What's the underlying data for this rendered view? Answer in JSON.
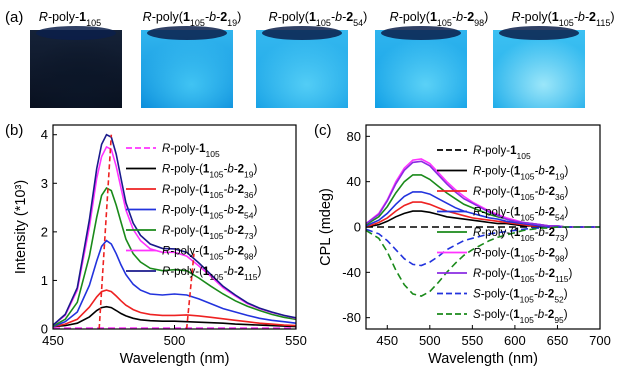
{
  "panel_labels": [
    "(a)",
    "(b)",
    "(c)"
  ],
  "vials": [
    {
      "caption": "R-poly-1105",
      "top": "#152238",
      "bottom": "#09101f",
      "glow": "#0b1628"
    },
    {
      "caption": "R-poly(1105-b-219)",
      "top": "#31b5ee",
      "bottom": "#0d8fdc",
      "glow": "#45c8f5"
    },
    {
      "caption": "R-poly(1105-b-254)",
      "top": "#34b8ef",
      "bottom": "#1aa3e6",
      "glow": "#58d1f7"
    },
    {
      "caption": "R-poly(1105-b-298)",
      "top": "#2fb4ee",
      "bottom": "#12a0e6",
      "glow": "#62d6f8"
    },
    {
      "caption": "R-poly(1105-b-2115)",
      "top": "#3cc0f2",
      "bottom": "#22aeea",
      "glow": "#a8ecfb"
    }
  ],
  "chart_data": [
    {
      "type": "line",
      "panel": "(b)",
      "xlabel": "Wavelength (nm)",
      "ylabel": "Intensity (*10³)",
      "xlim": [
        450,
        550
      ],
      "ylim": [
        0,
        4.2
      ],
      "xticks": [
        "450",
        "500",
        "550"
      ],
      "yticks": [
        "0",
        "1",
        "2",
        "3",
        "4"
      ],
      "legend_position": "top-right",
      "x": [
        450,
        455,
        460,
        465,
        468,
        470,
        472,
        474,
        476,
        478,
        480,
        483,
        486,
        490,
        495,
        500,
        505,
        510,
        515,
        520,
        525,
        530,
        535,
        540,
        545,
        550
      ],
      "series": [
        {
          "name": "R-poly-1105",
          "color": "#ff33ff",
          "dash": "dashed",
          "values": [
            0.02,
            0.02,
            0.02,
            0.02,
            0.02,
            0.02,
            0.02,
            0.02,
            0.02,
            0.02,
            0.02,
            0.02,
            0.02,
            0.02,
            0.02,
            0.02,
            0.02,
            0.02,
            0.02,
            0.02,
            0.02,
            0.02,
            0.02,
            0.02,
            0.02,
            0.02
          ]
        },
        {
          "name": "R-poly-(1105-b-219)",
          "color": "#000000",
          "dash": "solid",
          "values": [
            0.05,
            0.07,
            0.12,
            0.25,
            0.38,
            0.44,
            0.46,
            0.44,
            0.38,
            0.32,
            0.27,
            0.22,
            0.19,
            0.17,
            0.16,
            0.16,
            0.15,
            0.14,
            0.13,
            0.12,
            0.1,
            0.09,
            0.08,
            0.07,
            0.06,
            0.05
          ]
        },
        {
          "name": "R-poly-(1105-b-236)",
          "color": "#ee2222",
          "dash": "solid",
          "values": [
            0.05,
            0.1,
            0.2,
            0.45,
            0.66,
            0.77,
            0.8,
            0.77,
            0.68,
            0.58,
            0.49,
            0.4,
            0.34,
            0.3,
            0.28,
            0.28,
            0.29,
            0.27,
            0.24,
            0.21,
            0.18,
            0.15,
            0.12,
            0.1,
            0.08,
            0.07
          ]
        },
        {
          "name": "R-poly-(1105-b-254)",
          "color": "#2233dd",
          "dash": "solid",
          "values": [
            0.05,
            0.15,
            0.35,
            0.9,
            1.4,
            1.7,
            1.82,
            1.75,
            1.55,
            1.32,
            1.12,
            0.92,
            0.8,
            0.72,
            0.7,
            0.72,
            0.7,
            0.62,
            0.52,
            0.42,
            0.35,
            0.28,
            0.22,
            0.18,
            0.15,
            0.12
          ]
        },
        {
          "name": "R-poly-(1105-b-273)",
          "color": "#1a8a1a",
          "dash": "solid",
          "values": [
            0.06,
            0.2,
            0.55,
            1.5,
            2.3,
            2.75,
            2.9,
            2.85,
            2.55,
            2.2,
            1.85,
            1.55,
            1.38,
            1.25,
            1.2,
            1.22,
            1.2,
            1.05,
            0.88,
            0.72,
            0.58,
            0.47,
            0.38,
            0.3,
            0.24,
            0.2
          ]
        },
        {
          "name": "R-poly-(1105-b-298)",
          "color": "#ff33ff",
          "dash": "solid",
          "values": [
            0.08,
            0.28,
            0.8,
            2.1,
            3.1,
            3.55,
            3.75,
            3.7,
            3.35,
            2.9,
            2.45,
            2.05,
            1.82,
            1.65,
            1.58,
            1.58,
            1.5,
            1.3,
            1.08,
            0.85,
            0.68,
            0.52,
            0.42,
            0.34,
            0.28,
            0.22
          ]
        },
        {
          "name": "R-poly-(1105-b-2115)",
          "color": "#1a1a8c",
          "dash": "solid",
          "values": [
            0.08,
            0.3,
            0.85,
            2.25,
            3.3,
            3.8,
            4.0,
            3.95,
            3.6,
            3.1,
            2.6,
            2.18,
            1.93,
            1.75,
            1.66,
            1.65,
            1.58,
            1.36,
            1.12,
            0.88,
            0.7,
            0.54,
            0.43,
            0.35,
            0.28,
            0.23
          ]
        }
      ],
      "guide_lines": [
        {
          "color": "#ee2222",
          "from": [
            469,
            0
          ],
          "to": [
            474,
            4.0
          ]
        },
        {
          "color": "#ee2222",
          "from": [
            505,
            0
          ],
          "to": [
            508,
            1.55
          ]
        }
      ]
    },
    {
      "type": "line",
      "panel": "(c)",
      "xlabel": "Wavelength (nm)",
      "ylabel": "CPL (mdeg)",
      "xlim": [
        425,
        700
      ],
      "ylim": [
        -90,
        90
      ],
      "xticks": [
        "450",
        "500",
        "550",
        "600",
        "650",
        "700"
      ],
      "yticks": [
        "-80",
        "-40",
        "0",
        "40",
        "80"
      ],
      "legend_position": "right",
      "x": [
        425,
        440,
        450,
        460,
        470,
        480,
        490,
        500,
        510,
        520,
        530,
        540,
        550,
        560,
        570,
        580,
        590,
        600,
        610,
        620,
        630,
        640,
        650,
        660,
        670,
        680,
        690,
        700
      ],
      "series": [
        {
          "name": "R-poly-1105",
          "color": "#000000",
          "dash": "dashed",
          "values": [
            0,
            0,
            0,
            0,
            0,
            0,
            0,
            0,
            0,
            0,
            0,
            0,
            0,
            0,
            0,
            0,
            0,
            0,
            0,
            0,
            0,
            0,
            0,
            0,
            0,
            0,
            0,
            0
          ]
        },
        {
          "name": "R-poly-(1105-b-219)",
          "color": "#000000",
          "dash": "solid",
          "values": [
            0,
            2,
            5,
            9,
            12,
            14,
            14,
            13,
            11,
            9,
            8,
            7,
            6,
            5,
            4,
            3,
            3,
            2,
            1,
            1,
            0,
            0,
            0,
            0,
            0,
            0,
            0,
            0
          ]
        },
        {
          "name": "R-poly-(1105-b-236)",
          "color": "#ee2222",
          "dash": "solid",
          "values": [
            0,
            4,
            8,
            14,
            19,
            22,
            22,
            20,
            17,
            14,
            12,
            10,
            8,
            7,
            6,
            5,
            4,
            3,
            2,
            1,
            1,
            0,
            0,
            0,
            0,
            0,
            0,
            0
          ]
        },
        {
          "name": "R-poly-(1105-b-254)",
          "color": "#2233dd",
          "dash": "solid",
          "values": [
            1,
            6,
            12,
            20,
            27,
            31,
            31,
            29,
            25,
            21,
            17,
            14,
            12,
            10,
            8,
            7,
            5,
            4,
            3,
            2,
            1,
            1,
            0,
            0,
            0,
            0,
            0,
            0
          ]
        },
        {
          "name": "R-poly-(1105-b-273)",
          "color": "#1a8a1a",
          "dash": "solid",
          "values": [
            2,
            9,
            18,
            30,
            40,
            46,
            46,
            42,
            36,
            30,
            25,
            20,
            17,
            14,
            11,
            9,
            7,
            5,
            4,
            3,
            2,
            1,
            1,
            0,
            0,
            0,
            0,
            0
          ]
        },
        {
          "name": "R-poly-(1105-b-298)",
          "color": "#ff33ff",
          "dash": "solid",
          "values": [
            3,
            12,
            24,
            40,
            52,
            59,
            60,
            56,
            48,
            40,
            33,
            27,
            22,
            18,
            14,
            11,
            8,
            6,
            4,
            3,
            2,
            1,
            1,
            0,
            0,
            0,
            0,
            0
          ]
        },
        {
          "name": "R-poly-(1105-b-2115)",
          "color": "#8a2be2",
          "dash": "solid",
          "values": [
            3,
            11,
            23,
            38,
            50,
            57,
            58,
            54,
            46,
            38,
            31,
            25,
            21,
            17,
            13,
            10,
            7,
            5,
            4,
            3,
            2,
            1,
            1,
            0,
            0,
            0,
            0,
            0
          ]
        },
        {
          "name": "S-poly-(1105-b-252)",
          "color": "#2233dd",
          "dash": "dashed",
          "values": [
            -2,
            -6,
            -12,
            -20,
            -28,
            -33,
            -34,
            -31,
            -26,
            -20,
            -16,
            -12,
            -10,
            -8,
            -6,
            -5,
            -4,
            -3,
            -2,
            -1,
            -1,
            0,
            0,
            0,
            0,
            0,
            0,
            0
          ]
        },
        {
          "name": "S-poly-(1105-b-295)",
          "color": "#1a8a1a",
          "dash": "dashed",
          "values": [
            -3,
            -10,
            -22,
            -38,
            -51,
            -59,
            -61,
            -57,
            -49,
            -40,
            -32,
            -25,
            -20,
            -16,
            -12,
            -9,
            -7,
            -5,
            -3,
            -2,
            -1,
            -1,
            0,
            0,
            0,
            0,
            0,
            0
          ]
        }
      ]
    }
  ]
}
